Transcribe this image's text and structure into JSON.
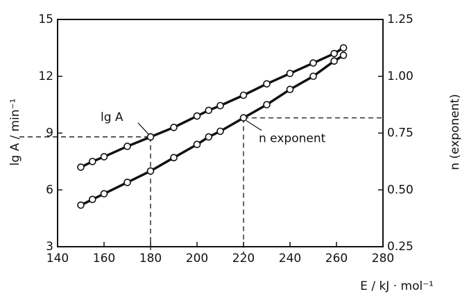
{
  "chart_data": {
    "type": "line",
    "x_label": "E / kJ · mol⁻¹",
    "y_label": "lg A / min⁻¹",
    "y2_label": "n  (exponent)",
    "xlim": [
      140,
      280
    ],
    "xticks": [
      140,
      160,
      180,
      200,
      220,
      240,
      260,
      280
    ],
    "ylim": [
      3,
      15
    ],
    "yticks": [
      3,
      6,
      9,
      12,
      15
    ],
    "y2lim": [
      0.25,
      1.25
    ],
    "y2ticks": [
      {
        "value": 0.25,
        "label": "0.25"
      },
      {
        "value": 0.5,
        "label": "0.50"
      },
      {
        "value": 0.75,
        "label": "0.75"
      },
      {
        "value": 1.0,
        "label": "1.00"
      },
      {
        "value": 1.25,
        "label": "1.25"
      }
    ],
    "series": [
      {
        "name": "lg A",
        "color": "#111111",
        "x": [
          150,
          155,
          160,
          170,
          180,
          190,
          200,
          205,
          210,
          220,
          230,
          240,
          250,
          259,
          263
        ],
        "values": [
          7.2,
          7.5,
          7.75,
          8.3,
          8.8,
          9.3,
          9.9,
          10.2,
          10.45,
          11.0,
          11.6,
          12.15,
          12.7,
          13.2,
          13.5
        ]
      },
      {
        "name": "n exponent",
        "color": "#111111",
        "axis": "y2",
        "x": [
          150,
          155,
          160,
          170,
          180,
          190,
          200,
          205,
          210,
          220,
          230,
          240,
          250,
          259,
          263
        ],
        "values": [
          0.433,
          0.458,
          0.483,
          0.533,
          0.583,
          0.642,
          0.7,
          0.733,
          0.758,
          0.817,
          0.875,
          0.942,
          1.0,
          1.067,
          1.092
        ]
      }
    ],
    "reference_lines": [
      {
        "x": 180,
        "y": 8.8
      },
      {
        "x": 220,
        "y": 0.817,
        "axis": "y2"
      }
    ]
  }
}
